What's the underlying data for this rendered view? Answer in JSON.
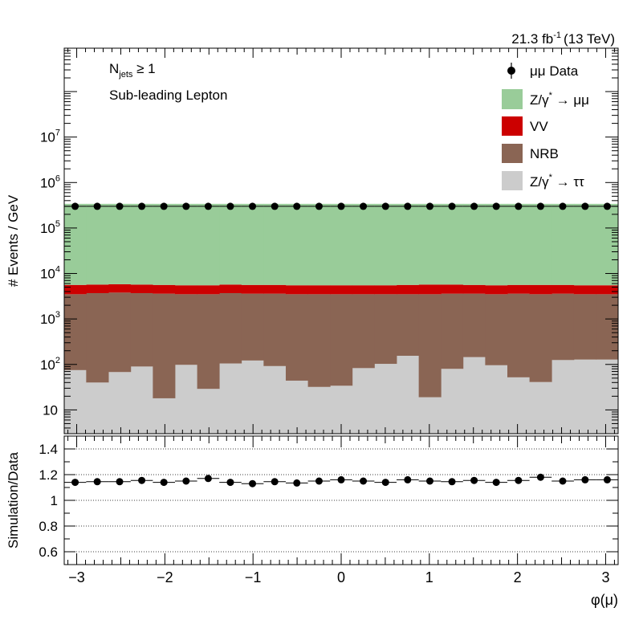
{
  "chart_data": [
    {
      "type": "bar",
      "stacked": true,
      "log_y": true,
      "xlabel": "",
      "ylabel": "# Events / GeV",
      "luminosity": "21.3 fb-1 (13 TeV)",
      "lumi_text": "21.3 fb",
      "lumi_exp": "-1",
      "lumi_energy": "(13 TeV)",
      "annotations": {
        "line1_main": "N",
        "line1_sub": "jets",
        "line1_rest": " ≥ 1",
        "line2": "Sub-leading Lepton"
      },
      "xlim": [
        -3.1416,
        3.1416
      ],
      "ylim": [
        3,
        900000000
      ],
      "y_ticks": [
        {
          "label": "10",
          "value": 10
        },
        {
          "label": "10",
          "sup": "2",
          "value": 100
        },
        {
          "label": "10",
          "sup": "3",
          "value": 1000
        },
        {
          "label": "10",
          "sup": "4",
          "value": 10000
        },
        {
          "label": "10",
          "sup": "5",
          "value": 100000
        },
        {
          "label": "10",
          "sup": "6",
          "value": 1000000
        },
        {
          "label": "10",
          "sup": "7",
          "value": 10000000
        }
      ],
      "x": [
        -3.018,
        -2.767,
        -2.513,
        -2.262,
        -2.011,
        -1.759,
        -1.508,
        -1.257,
        -1.006,
        -0.754,
        -0.503,
        -0.251,
        0.0,
        0.251,
        0.503,
        0.754,
        1.006,
        1.257,
        1.508,
        1.759,
        2.011,
        2.262,
        2.513,
        2.767,
        3.018
      ],
      "series": [
        {
          "name": "Z/γ* → ττ",
          "color": "#cccccc",
          "values": [
            75,
            40,
            68,
            90,
            18,
            98,
            29,
            105,
            122,
            92,
            44,
            32,
            34,
            83,
            103,
            155,
            19,
            80,
            145,
            96,
            52,
            41,
            125,
            128,
            128
          ]
        },
        {
          "name": "NRB",
          "color": "#8a6554",
          "values": [
            3425,
            3660,
            3732,
            3610,
            3582,
            3402,
            3471,
            3595,
            3478,
            3508,
            3456,
            3468,
            3466,
            3417,
            3397,
            3345,
            3481,
            3520,
            3455,
            3404,
            3548,
            3459,
            3475,
            3372,
            3372
          ]
        },
        {
          "name": "VV",
          "color": "#cc0000",
          "values": [
            2100,
            2000,
            2000,
            2000,
            2000,
            2000,
            2000,
            2000,
            2000,
            2000,
            2000,
            2000,
            2000,
            2000,
            2000,
            2100,
            2200,
            2100,
            2000,
            2000,
            2000,
            2100,
            2000,
            2000,
            2000
          ]
        },
        {
          "name": "Z/γ* → μμ",
          "color": "#99cc99",
          "values": [
            334000,
            334000,
            334000,
            334000,
            334000,
            334000,
            334000,
            334000,
            334000,
            334000,
            334000,
            334000,
            334000,
            334000,
            334000,
            334000,
            334000,
            334000,
            334000,
            334000,
            334000,
            334000,
            334000,
            334000,
            334000
          ]
        }
      ],
      "data": {
        "name": "μμ Data",
        "values": [
          300000,
          300000,
          300000,
          300000,
          300000,
          300000,
          300000,
          300000,
          300000,
          300000,
          300000,
          300000,
          300000,
          300000,
          300000,
          300000,
          300000,
          300000,
          300000,
          300000,
          300000,
          300000,
          300000,
          300000,
          300000
        ]
      },
      "legend_position": "top-right"
    },
    {
      "type": "scatter",
      "xlabel": "φ(μ)",
      "ylabel": "Simulation/Data",
      "xlim": [
        -3.1416,
        3.1416
      ],
      "ylim": [
        0.5,
        1.5
      ],
      "x_ticks": [
        -3,
        -2,
        -1,
        0,
        1,
        2,
        3
      ],
      "x_tick_labels": [
        "−3",
        "−2",
        "−1",
        "0",
        "1",
        "2",
        "3"
      ],
      "y_ticks": [
        0.6,
        0.8,
        1.0,
        1.2,
        1.4
      ],
      "y_tick_labels": [
        "0.6",
        "0.8",
        "1",
        "1.2",
        "1.4"
      ],
      "gridlines_y": [
        0.6,
        0.8,
        1.0,
        1.2,
        1.4
      ],
      "x": [
        -3.018,
        -2.767,
        -2.513,
        -2.262,
        -2.011,
        -1.759,
        -1.508,
        -1.257,
        -1.006,
        -0.754,
        -0.503,
        -0.251,
        0.0,
        0.251,
        0.503,
        0.754,
        1.006,
        1.257,
        1.508,
        1.759,
        2.011,
        2.262,
        2.513,
        2.767,
        3.018
      ],
      "values": [
        1.14,
        1.145,
        1.145,
        1.155,
        1.14,
        1.15,
        1.17,
        1.14,
        1.13,
        1.145,
        1.135,
        1.15,
        1.16,
        1.15,
        1.14,
        1.16,
        1.15,
        1.145,
        1.155,
        1.14,
        1.155,
        1.18,
        1.15,
        1.16,
        1.16
      ]
    }
  ],
  "legend": {
    "data": "μμ Data",
    "zmm": {
      "pre": "Z/γ",
      "sup": "*",
      "post": " → μμ"
    },
    "vv": "VV",
    "nrb": "NRB",
    "ztt": {
      "pre": "Z/γ",
      "sup": "*",
      "post": " → ττ"
    }
  }
}
